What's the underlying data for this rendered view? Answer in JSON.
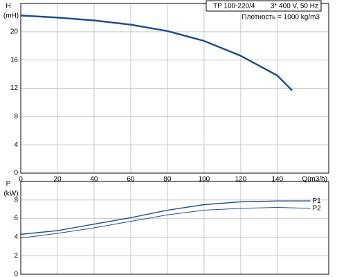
{
  "chart_data": [
    {
      "type": "line",
      "ylabel": "H",
      "yunit": "(mH)",
      "xlabel": "Q(m3/h)",
      "title": "TP 100-220/4",
      "subtitle": "3* 400 V, 50 Hz",
      "annotation": "Плотность = 1000 kg/m3",
      "x": [
        0,
        20,
        40,
        60,
        80,
        100,
        120,
        140,
        148
      ],
      "series": [
        {
          "name": "H",
          "color": "#1f4e8c",
          "values": [
            22.3,
            22.0,
            21.6,
            21.0,
            20.1,
            18.7,
            16.6,
            13.8,
            11.7
          ]
        }
      ],
      "xlim": [
        0,
        168
      ],
      "ylim": [
        0,
        24
      ],
      "xticks": [
        0,
        20,
        40,
        60,
        80,
        100,
        120,
        140
      ],
      "yticks": [
        0,
        4,
        8,
        12,
        16,
        20
      ],
      "grid": true
    },
    {
      "type": "line",
      "ylabel": "P",
      "yunit": "(kW)",
      "x": [
        0,
        20,
        40,
        60,
        80,
        100,
        120,
        140,
        158
      ],
      "series": [
        {
          "name": "P1",
          "color": "#1f4e8c",
          "values": [
            4.3,
            4.7,
            5.4,
            6.1,
            6.9,
            7.5,
            7.8,
            7.9,
            7.9
          ]
        },
        {
          "name": "P2",
          "color": "#1f4e8c",
          "values": [
            3.9,
            4.4,
            5.0,
            5.7,
            6.4,
            6.9,
            7.1,
            7.2,
            7.1
          ]
        }
      ],
      "xlim": [
        0,
        168
      ],
      "ylim": [
        0,
        10
      ],
      "yticks": [
        0,
        2,
        4,
        6,
        8
      ],
      "grid": true
    }
  ]
}
